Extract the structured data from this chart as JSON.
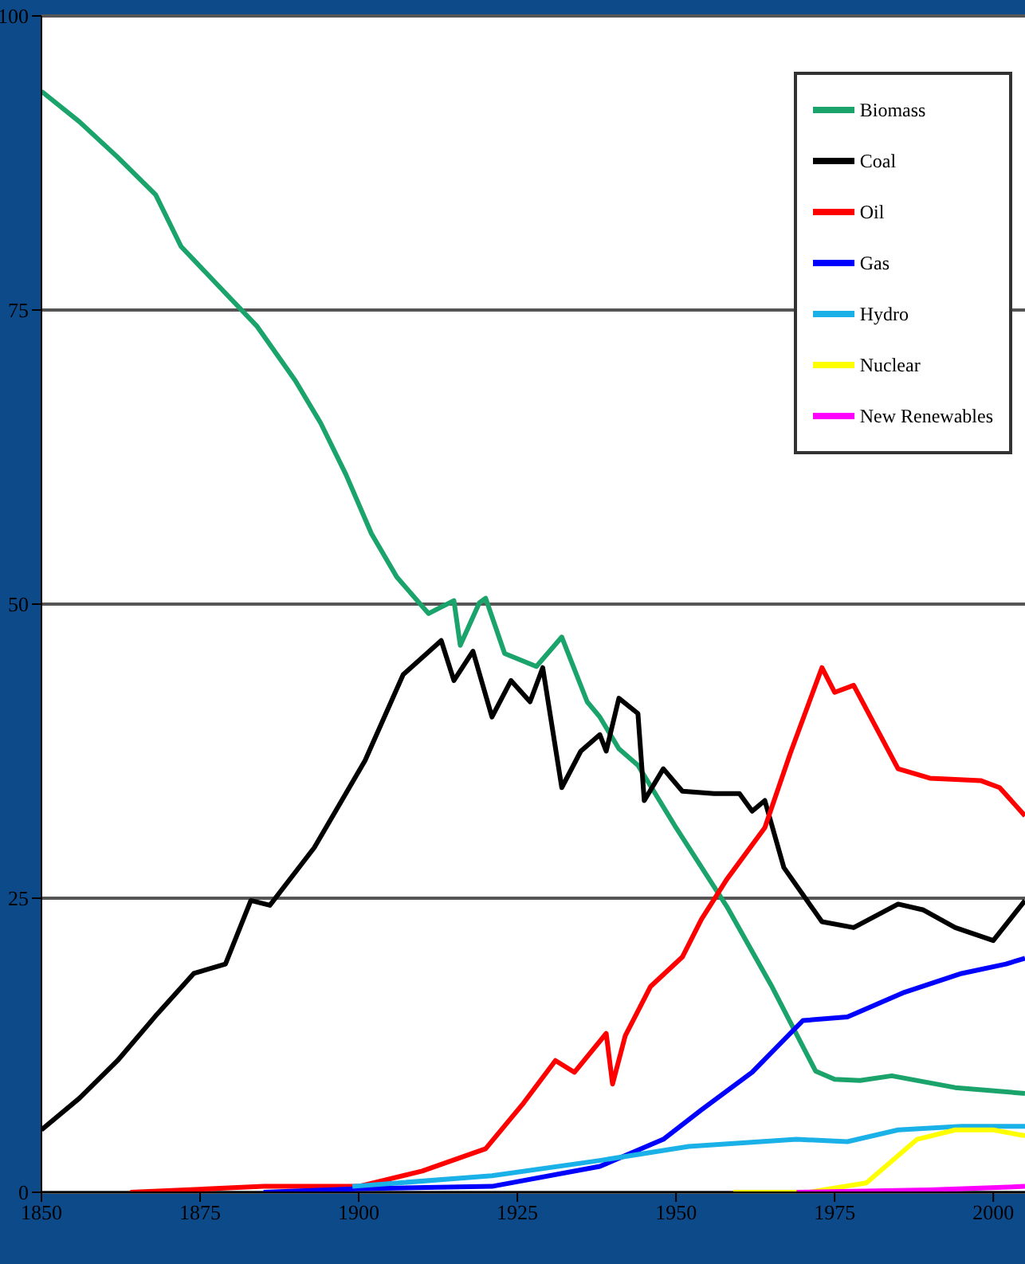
{
  "chart_data": {
    "type": "line",
    "xlim": [
      1850,
      2005
    ],
    "xticks": [
      1850,
      1875,
      1900,
      1925,
      1950,
      1975,
      2000
    ],
    "ylim": [
      0,
      100
    ],
    "yticks": [
      0,
      25,
      50,
      75,
      100
    ],
    "grid": "y",
    "legend": "top right",
    "marker": "none",
    "line_style": "solid",
    "series": [
      {
        "name": "Biomass",
        "color": "#1aa36b",
        "x": [
          1850,
          1856,
          1862,
          1868,
          1872,
          1878,
          1884,
          1890,
          1894,
          1898,
          1902,
          1906,
          1911,
          1915,
          1916,
          1919,
          1920,
          1923,
          1928,
          1932,
          1936,
          1938,
          1941,
          1944,
          1950,
          1958,
          1965,
          1972,
          1975,
          1979,
          1984,
          1994,
          2005
        ],
        "values": [
          93.6,
          91,
          88,
          84.8,
          80.4,
          77,
          73.6,
          69,
          65.4,
          61,
          56,
          52.3,
          49.2,
          50.3,
          46.5,
          50.1,
          50.5,
          45.8,
          44.7,
          47.2,
          41.7,
          40.4,
          37.7,
          36.3,
          31,
          24.3,
          17.6,
          10.3,
          9.6,
          9.5,
          9.9,
          8.9,
          8.4
        ]
      },
      {
        "name": "Coal",
        "color": "#000000",
        "x": [
          1850,
          1856,
          1862,
          1868,
          1874,
          1879,
          1883,
          1886,
          1893,
          1901,
          1907,
          1913,
          1915,
          1918,
          1921,
          1924,
          1927,
          1929,
          1932,
          1935,
          1938,
          1939,
          1941,
          1944,
          1945,
          1948,
          1951,
          1956,
          1960,
          1962,
          1964,
          1967,
          1973,
          1978,
          1985,
          1989,
          1994,
          2000,
          2005
        ],
        "values": [
          5.3,
          8,
          11.2,
          15,
          18.6,
          19.4,
          24.8,
          24.4,
          29.3,
          36.7,
          44,
          46.9,
          43.5,
          46,
          40.4,
          43.5,
          41.7,
          44.6,
          34.4,
          37.5,
          38.9,
          37.5,
          42,
          40.7,
          33.3,
          36,
          34.1,
          33.9,
          33.9,
          32.4,
          33.3,
          27.6,
          23,
          22.5,
          24.5,
          24,
          22.5,
          21.4,
          24.8
        ]
      },
      {
        "name": "Oil",
        "color": "#ff0000",
        "x": [
          1864,
          1885,
          1900,
          1910,
          1920,
          1926,
          1931,
          1934,
          1939,
          1940,
          1942,
          1946,
          1951,
          1954,
          1958,
          1964,
          1968,
          1973,
          1975,
          1978,
          1985,
          1990,
          1998,
          2001,
          2005
        ],
        "values": [
          0,
          0.5,
          0.5,
          1.8,
          3.7,
          7.6,
          11.2,
          10.2,
          13.5,
          9.2,
          13.3,
          17.5,
          20,
          23.2,
          26.6,
          31,
          37.3,
          44.6,
          42.5,
          43.1,
          36,
          35.2,
          35,
          34.4,
          32
        ]
      },
      {
        "name": "Gas",
        "color": "#0000ff",
        "x": [
          1885,
          1900,
          1921,
          1938,
          1948,
          1954,
          1962,
          1970,
          1977,
          1986,
          1995,
          2002,
          2005
        ],
        "values": [
          0,
          0.3,
          0.5,
          2.2,
          4.5,
          7,
          10.2,
          14.6,
          14.9,
          17,
          18.6,
          19.4,
          19.9
        ]
      },
      {
        "name": "Hydro",
        "color": "#1ab0e8",
        "x": [
          1899,
          1921,
          1938,
          1952,
          1969,
          1977,
          1985,
          1995,
          2005
        ],
        "values": [
          0.5,
          1.4,
          2.7,
          3.9,
          4.5,
          4.3,
          5.3,
          5.6,
          5.6
        ]
      },
      {
        "name": "Nuclear",
        "color": "#ffff00",
        "x": [
          1959,
          1971,
          1980,
          1988,
          1994,
          2000,
          2005
        ],
        "values": [
          0,
          0,
          0.8,
          4.5,
          5.3,
          5.3,
          4.8
        ]
      },
      {
        "name": "New Renewables",
        "color": "#ff00ff",
        "x": [
          1969,
          1990,
          2005
        ],
        "values": [
          0,
          0.2,
          0.5
        ]
      }
    ]
  }
}
